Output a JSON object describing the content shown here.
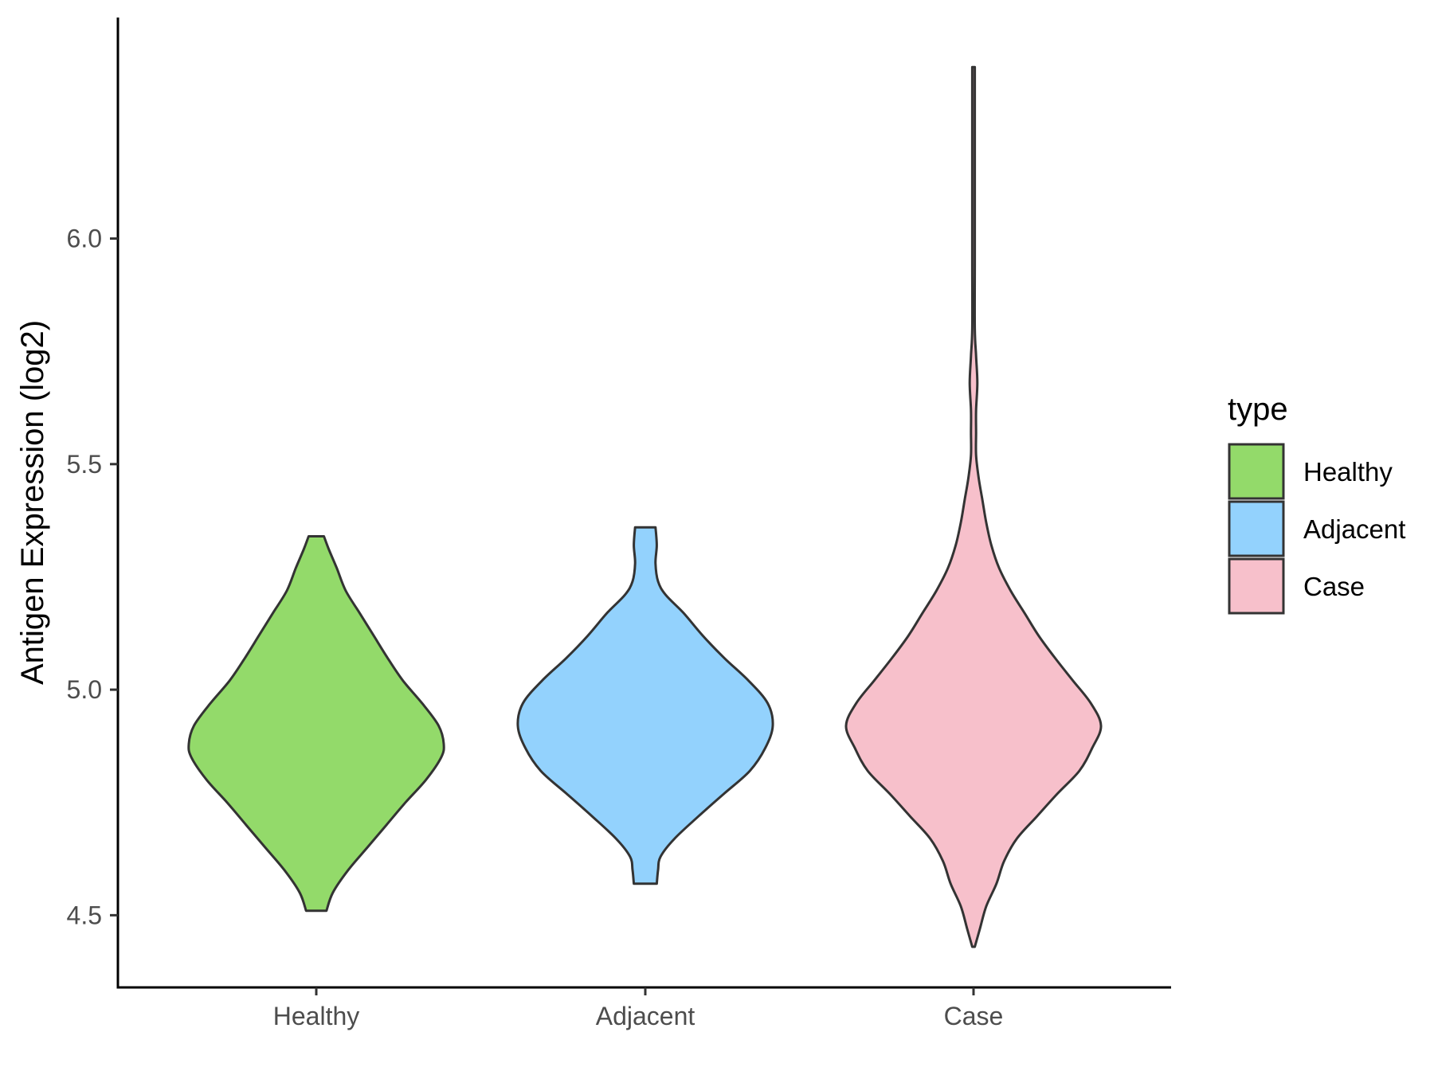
{
  "chart_data": {
    "type": "violin",
    "title": "",
    "xlabel": "",
    "ylabel": "Antigen Expression (log2)",
    "categories": [
      "Healthy",
      "Adjacent",
      "Case"
    ],
    "ylim": [
      4.34,
      6.49
    ],
    "yticks": [
      4.5,
      5.0,
      5.5,
      6.0
    ],
    "ytick_labels": [
      "4.5",
      "5.0",
      "5.5",
      "6.0"
    ],
    "grid": false,
    "legend": {
      "title": "type",
      "position": "right",
      "entries": [
        {
          "label": "Healthy",
          "color": "#93DA6A"
        },
        {
          "label": "Adjacent",
          "color": "#93D2FD"
        },
        {
          "label": "Case",
          "color": "#F7C0CB"
        }
      ]
    },
    "series": [
      {
        "name": "Healthy",
        "color": "#93DA6A",
        "min": 4.51,
        "max": 5.34,
        "density_profile": [
          [
            4.51,
            0.08
          ],
          [
            4.55,
            0.13
          ],
          [
            4.6,
            0.25
          ],
          [
            4.65,
            0.4
          ],
          [
            4.7,
            0.55
          ],
          [
            4.75,
            0.7
          ],
          [
            4.8,
            0.86
          ],
          [
            4.85,
            0.98
          ],
          [
            4.88,
            1.0
          ],
          [
            4.92,
            0.96
          ],
          [
            4.97,
            0.83
          ],
          [
            5.02,
            0.68
          ],
          [
            5.07,
            0.56
          ],
          [
            5.12,
            0.45
          ],
          [
            5.17,
            0.34
          ],
          [
            5.22,
            0.23
          ],
          [
            5.27,
            0.16
          ],
          [
            5.31,
            0.1
          ],
          [
            5.34,
            0.06
          ]
        ]
      },
      {
        "name": "Adjacent",
        "color": "#93D2FD",
        "min": 4.57,
        "max": 5.36,
        "density_profile": [
          [
            4.57,
            0.09
          ],
          [
            4.6,
            0.1
          ],
          [
            4.63,
            0.12
          ],
          [
            4.67,
            0.23
          ],
          [
            4.72,
            0.42
          ],
          [
            4.77,
            0.62
          ],
          [
            4.82,
            0.82
          ],
          [
            4.87,
            0.94
          ],
          [
            4.92,
            1.0
          ],
          [
            4.97,
            0.96
          ],
          [
            5.02,
            0.81
          ],
          [
            5.07,
            0.62
          ],
          [
            5.12,
            0.45
          ],
          [
            5.17,
            0.3
          ],
          [
            5.21,
            0.16
          ],
          [
            5.24,
            0.1
          ],
          [
            5.28,
            0.08
          ],
          [
            5.32,
            0.09
          ],
          [
            5.36,
            0.08
          ]
        ]
      },
      {
        "name": "Case",
        "color": "#F7C0CB",
        "min": 4.43,
        "max": 6.38,
        "density_profile": [
          [
            4.43,
            0.01
          ],
          [
            4.47,
            0.05
          ],
          [
            4.52,
            0.1
          ],
          [
            4.57,
            0.18
          ],
          [
            4.62,
            0.24
          ],
          [
            4.67,
            0.34
          ],
          [
            4.72,
            0.5
          ],
          [
            4.77,
            0.66
          ],
          [
            4.82,
            0.83
          ],
          [
            4.87,
            0.93
          ],
          [
            4.92,
            1.0
          ],
          [
            4.97,
            0.92
          ],
          [
            5.02,
            0.78
          ],
          [
            5.07,
            0.64
          ],
          [
            5.12,
            0.51
          ],
          [
            5.17,
            0.4
          ],
          [
            5.22,
            0.29
          ],
          [
            5.27,
            0.2
          ],
          [
            5.32,
            0.14
          ],
          [
            5.37,
            0.1
          ],
          [
            5.42,
            0.07
          ],
          [
            5.47,
            0.04
          ],
          [
            5.52,
            0.02
          ],
          [
            5.57,
            0.02
          ],
          [
            5.62,
            0.02
          ],
          [
            5.68,
            0.03
          ],
          [
            5.74,
            0.02
          ],
          [
            5.8,
            0.01
          ],
          [
            5.95,
            0.01
          ],
          [
            6.15,
            0.01
          ],
          [
            6.28,
            0.01
          ],
          [
            6.38,
            0.01
          ]
        ]
      }
    ]
  }
}
